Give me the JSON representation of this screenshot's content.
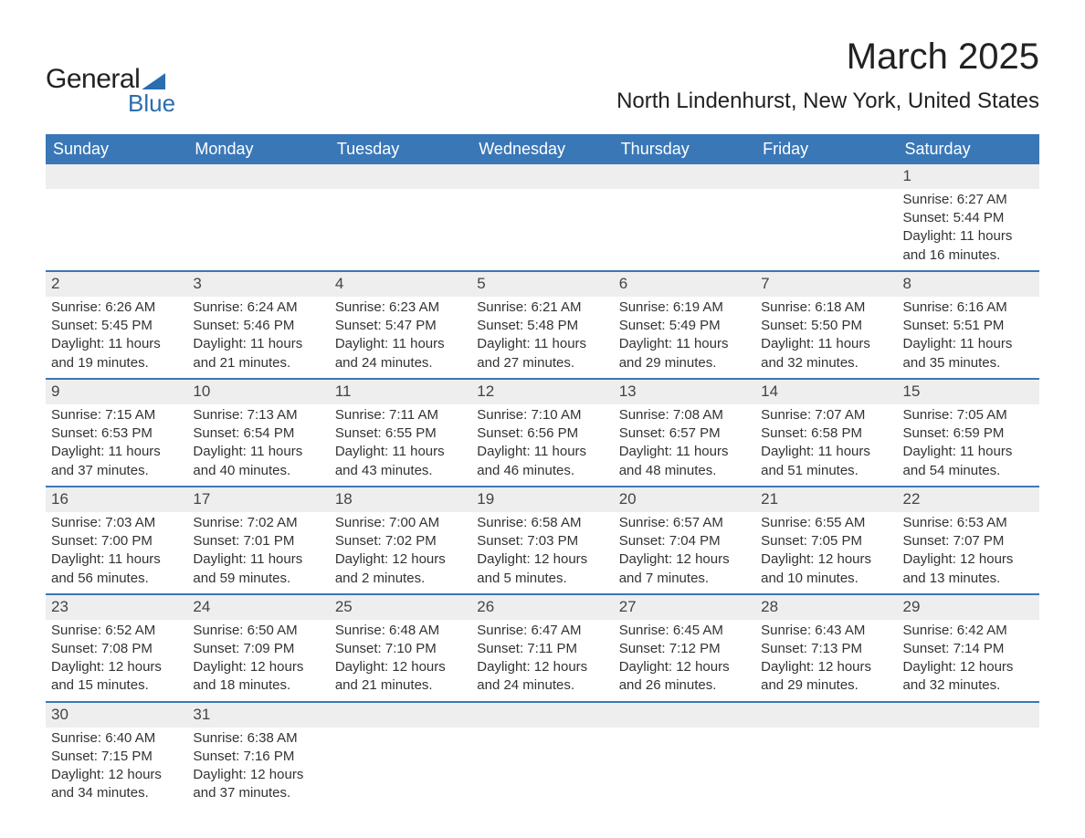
{
  "brand": {
    "word1": "General",
    "word2": "Blue",
    "accent_color": "#2a6db0"
  },
  "title": "March 2025",
  "location": "North Lindenhurst, New York, United States",
  "header_bg": "#3a77b7",
  "header_fg": "#ffffff",
  "daynum_bg": "#eeeeee",
  "border_color": "#3a77b7",
  "text_color": "#333333",
  "day_headers": [
    "Sunday",
    "Monday",
    "Tuesday",
    "Wednesday",
    "Thursday",
    "Friday",
    "Saturday"
  ],
  "weeks": [
    [
      null,
      null,
      null,
      null,
      null,
      null,
      {
        "n": "1",
        "sunrise": "Sunrise: 6:27 AM",
        "sunset": "Sunset: 5:44 PM",
        "d1": "Daylight: 11 hours",
        "d2": "and 16 minutes."
      }
    ],
    [
      {
        "n": "2",
        "sunrise": "Sunrise: 6:26 AM",
        "sunset": "Sunset: 5:45 PM",
        "d1": "Daylight: 11 hours",
        "d2": "and 19 minutes."
      },
      {
        "n": "3",
        "sunrise": "Sunrise: 6:24 AM",
        "sunset": "Sunset: 5:46 PM",
        "d1": "Daylight: 11 hours",
        "d2": "and 21 minutes."
      },
      {
        "n": "4",
        "sunrise": "Sunrise: 6:23 AM",
        "sunset": "Sunset: 5:47 PM",
        "d1": "Daylight: 11 hours",
        "d2": "and 24 minutes."
      },
      {
        "n": "5",
        "sunrise": "Sunrise: 6:21 AM",
        "sunset": "Sunset: 5:48 PM",
        "d1": "Daylight: 11 hours",
        "d2": "and 27 minutes."
      },
      {
        "n": "6",
        "sunrise": "Sunrise: 6:19 AM",
        "sunset": "Sunset: 5:49 PM",
        "d1": "Daylight: 11 hours",
        "d2": "and 29 minutes."
      },
      {
        "n": "7",
        "sunrise": "Sunrise: 6:18 AM",
        "sunset": "Sunset: 5:50 PM",
        "d1": "Daylight: 11 hours",
        "d2": "and 32 minutes."
      },
      {
        "n": "8",
        "sunrise": "Sunrise: 6:16 AM",
        "sunset": "Sunset: 5:51 PM",
        "d1": "Daylight: 11 hours",
        "d2": "and 35 minutes."
      }
    ],
    [
      {
        "n": "9",
        "sunrise": "Sunrise: 7:15 AM",
        "sunset": "Sunset: 6:53 PM",
        "d1": "Daylight: 11 hours",
        "d2": "and 37 minutes."
      },
      {
        "n": "10",
        "sunrise": "Sunrise: 7:13 AM",
        "sunset": "Sunset: 6:54 PM",
        "d1": "Daylight: 11 hours",
        "d2": "and 40 minutes."
      },
      {
        "n": "11",
        "sunrise": "Sunrise: 7:11 AM",
        "sunset": "Sunset: 6:55 PM",
        "d1": "Daylight: 11 hours",
        "d2": "and 43 minutes."
      },
      {
        "n": "12",
        "sunrise": "Sunrise: 7:10 AM",
        "sunset": "Sunset: 6:56 PM",
        "d1": "Daylight: 11 hours",
        "d2": "and 46 minutes."
      },
      {
        "n": "13",
        "sunrise": "Sunrise: 7:08 AM",
        "sunset": "Sunset: 6:57 PM",
        "d1": "Daylight: 11 hours",
        "d2": "and 48 minutes."
      },
      {
        "n": "14",
        "sunrise": "Sunrise: 7:07 AM",
        "sunset": "Sunset: 6:58 PM",
        "d1": "Daylight: 11 hours",
        "d2": "and 51 minutes."
      },
      {
        "n": "15",
        "sunrise": "Sunrise: 7:05 AM",
        "sunset": "Sunset: 6:59 PM",
        "d1": "Daylight: 11 hours",
        "d2": "and 54 minutes."
      }
    ],
    [
      {
        "n": "16",
        "sunrise": "Sunrise: 7:03 AM",
        "sunset": "Sunset: 7:00 PM",
        "d1": "Daylight: 11 hours",
        "d2": "and 56 minutes."
      },
      {
        "n": "17",
        "sunrise": "Sunrise: 7:02 AM",
        "sunset": "Sunset: 7:01 PM",
        "d1": "Daylight: 11 hours",
        "d2": "and 59 minutes."
      },
      {
        "n": "18",
        "sunrise": "Sunrise: 7:00 AM",
        "sunset": "Sunset: 7:02 PM",
        "d1": "Daylight: 12 hours",
        "d2": "and 2 minutes."
      },
      {
        "n": "19",
        "sunrise": "Sunrise: 6:58 AM",
        "sunset": "Sunset: 7:03 PM",
        "d1": "Daylight: 12 hours",
        "d2": "and 5 minutes."
      },
      {
        "n": "20",
        "sunrise": "Sunrise: 6:57 AM",
        "sunset": "Sunset: 7:04 PM",
        "d1": "Daylight: 12 hours",
        "d2": "and 7 minutes."
      },
      {
        "n": "21",
        "sunrise": "Sunrise: 6:55 AM",
        "sunset": "Sunset: 7:05 PM",
        "d1": "Daylight: 12 hours",
        "d2": "and 10 minutes."
      },
      {
        "n": "22",
        "sunrise": "Sunrise: 6:53 AM",
        "sunset": "Sunset: 7:07 PM",
        "d1": "Daylight: 12 hours",
        "d2": "and 13 minutes."
      }
    ],
    [
      {
        "n": "23",
        "sunrise": "Sunrise: 6:52 AM",
        "sunset": "Sunset: 7:08 PM",
        "d1": "Daylight: 12 hours",
        "d2": "and 15 minutes."
      },
      {
        "n": "24",
        "sunrise": "Sunrise: 6:50 AM",
        "sunset": "Sunset: 7:09 PM",
        "d1": "Daylight: 12 hours",
        "d2": "and 18 minutes."
      },
      {
        "n": "25",
        "sunrise": "Sunrise: 6:48 AM",
        "sunset": "Sunset: 7:10 PM",
        "d1": "Daylight: 12 hours",
        "d2": "and 21 minutes."
      },
      {
        "n": "26",
        "sunrise": "Sunrise: 6:47 AM",
        "sunset": "Sunset: 7:11 PM",
        "d1": "Daylight: 12 hours",
        "d2": "and 24 minutes."
      },
      {
        "n": "27",
        "sunrise": "Sunrise: 6:45 AM",
        "sunset": "Sunset: 7:12 PM",
        "d1": "Daylight: 12 hours",
        "d2": "and 26 minutes."
      },
      {
        "n": "28",
        "sunrise": "Sunrise: 6:43 AM",
        "sunset": "Sunset: 7:13 PM",
        "d1": "Daylight: 12 hours",
        "d2": "and 29 minutes."
      },
      {
        "n": "29",
        "sunrise": "Sunrise: 6:42 AM",
        "sunset": "Sunset: 7:14 PM",
        "d1": "Daylight: 12 hours",
        "d2": "and 32 minutes."
      }
    ],
    [
      {
        "n": "30",
        "sunrise": "Sunrise: 6:40 AM",
        "sunset": "Sunset: 7:15 PM",
        "d1": "Daylight: 12 hours",
        "d2": "and 34 minutes."
      },
      {
        "n": "31",
        "sunrise": "Sunrise: 6:38 AM",
        "sunset": "Sunset: 7:16 PM",
        "d1": "Daylight: 12 hours",
        "d2": "and 37 minutes."
      },
      null,
      null,
      null,
      null,
      null
    ]
  ]
}
